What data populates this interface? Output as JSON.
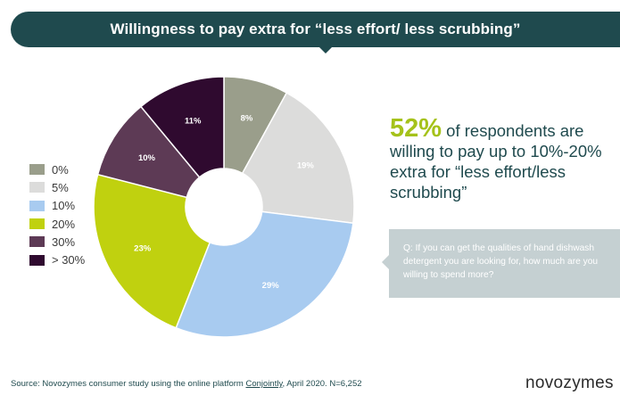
{
  "banner": {
    "title": "Willingness to pay extra for “less effort/ less scrubbing”"
  },
  "headline": {
    "percent": "52%",
    "text": " of respondents are willing to pay up to 10%-20% extra for “less effort/less scrubbing”"
  },
  "question": {
    "text": "Q: If you can get the qualities of hand dishwash detergent you are looking for, how much are you willing to spend more?"
  },
  "source": {
    "prefix": "Source: Novozymes consumer study using the online platform ",
    "link": "Conjointly",
    "suffix": ", April 2020. N=6,252"
  },
  "logo": {
    "text": "novozymes"
  },
  "chart_data": {
    "type": "donut",
    "title": "Willingness to pay extra for “less effort/ less scrubbing”",
    "slices": [
      {
        "label": "0%",
        "value": 8,
        "display": "8%",
        "color": "#9a9e8b",
        "text_color": "#ffffff"
      },
      {
        "label": "5%",
        "value": 19,
        "display": "19%",
        "color": "#dcdcdb",
        "text_color": "#ffffff"
      },
      {
        "label": "10%",
        "value": 29,
        "display": "29%",
        "color": "#a8cbf0",
        "text_color": "#ffffff"
      },
      {
        "label": "20%",
        "value": 23,
        "display": "23%",
        "color": "#c0d10f",
        "text_color": "#ffffff"
      },
      {
        "label": "30%",
        "value": 10,
        "display": "10%",
        "color": "#5d3a55",
        "text_color": "#ffffff"
      },
      {
        "label": "> 30%",
        "value": 11,
        "display": "11%",
        "color": "#2f0a2f",
        "text_color": "#ffffff"
      }
    ],
    "legend_position": "left",
    "start": "top, clockwise, starting with > 30% slice to the left of 12 o'clock"
  }
}
